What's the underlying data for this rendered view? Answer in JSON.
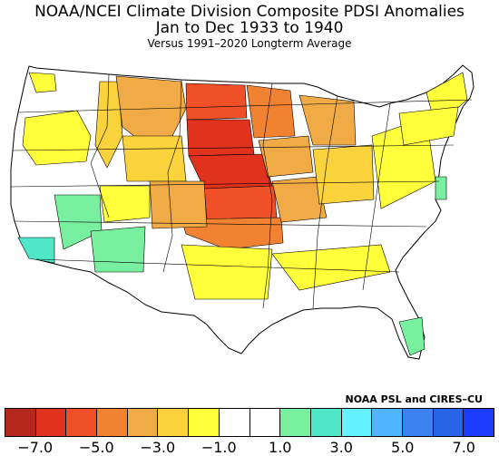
{
  "title_line1": "NOAA/NCEI Climate Division Composite PDSI Anomalies",
  "title_line2": "Jan to Dec 1933 to 1940",
  "title_line3": "Versus 1991–2020 Longterm Average",
  "credit": "NOAA PSL and CIRES–CU",
  "colorbar": {
    "colors": [
      "#b4281e",
      "#e1321e",
      "#f05028",
      "#f08232",
      "#f0aa46",
      "#fad23c",
      "#ffff3c",
      "#ffffff",
      "#ffffff",
      "#78f0a0",
      "#50e6c8",
      "#64f0ff",
      "#50b4ff",
      "#3c82f0",
      "#2864e6",
      "#1e3cff"
    ],
    "tick_labels": [
      "−7.0",
      "−5.0",
      "−3.0",
      "−1.0",
      "1.0",
      "3.0",
      "5.0",
      "7.0"
    ]
  },
  "map_colors": {
    "land": "#ffffff",
    "border": "#000000",
    "anom_strong_dry": "#e1321e",
    "anom_dry": "#f05028",
    "anom_mod_dry": "#f08232",
    "anom_light_dry": "#f0aa46",
    "anom_slight_dry": "#fad23c",
    "anom_weak_dry": "#ffff3c",
    "anom_weak_wet": "#78f0a0",
    "anom_wet": "#50e6c8"
  }
}
